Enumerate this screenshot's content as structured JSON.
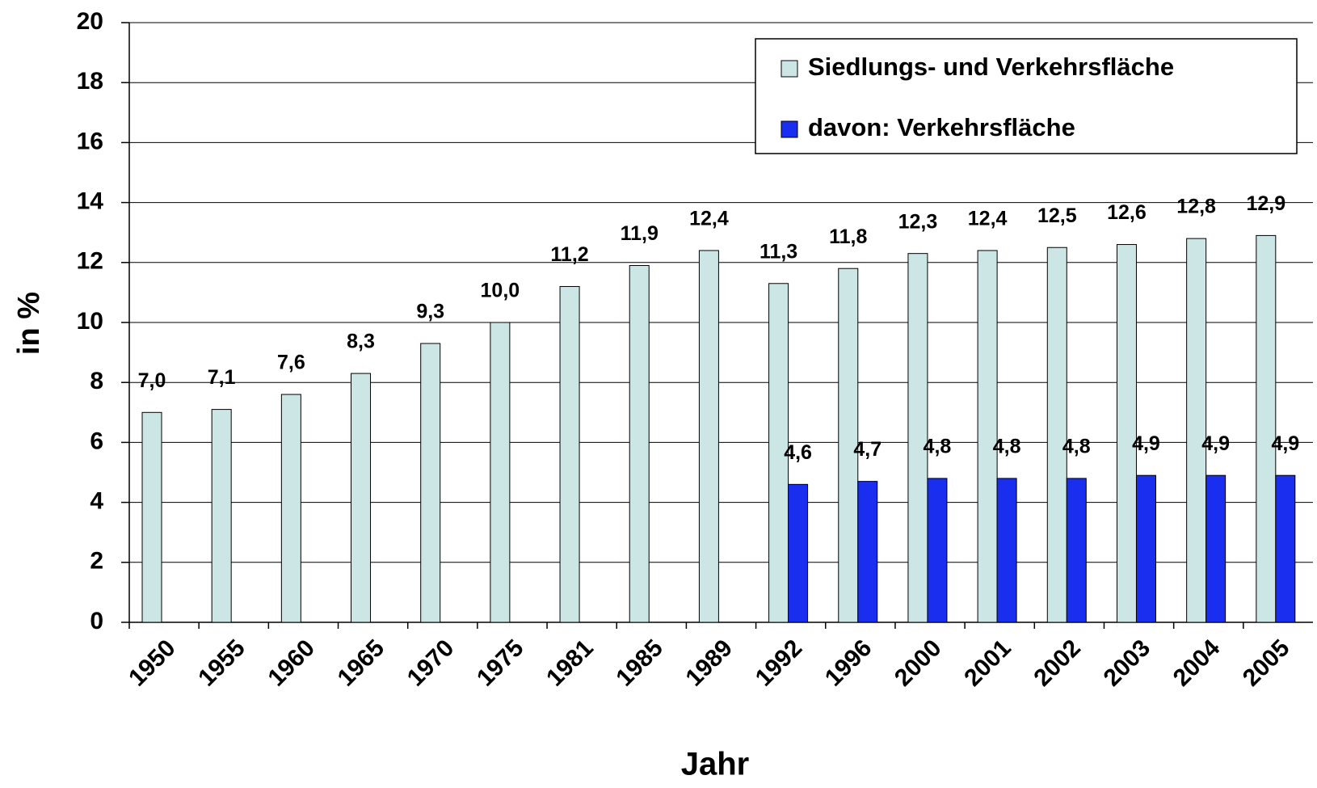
{
  "chart_data": {
    "type": "bar",
    "x_label": "Jahr",
    "y_label": "in %",
    "categories": [
      "1950",
      "1955",
      "1960",
      "1965",
      "1970",
      "1975",
      "1981",
      "1985",
      "1989",
      "1992",
      "1996",
      "2000",
      "2001",
      "2002",
      "2003",
      "2004",
      "2005"
    ],
    "series": [
      {
        "name": "Siedlungs- und Verkehrsfläche",
        "color": "#cce6e6",
        "values": [
          7.0,
          7.1,
          7.6,
          8.3,
          9.3,
          10.0,
          11.2,
          11.9,
          12.4,
          11.3,
          11.8,
          12.3,
          12.4,
          12.5,
          12.6,
          12.8,
          12.9
        ],
        "value_labels": [
          "7,0",
          "7,1",
          "7,6",
          "8,3",
          "9,3",
          "10,0",
          "11,2",
          "11,9",
          "12,4",
          "11,3",
          "11,8",
          "12,3",
          "12,4",
          "12,5",
          "12,6",
          "12,8",
          "12,9"
        ]
      },
      {
        "name": "davon: Verkehrsfläche",
        "color": "#1a2ef0",
        "values": [
          null,
          null,
          null,
          null,
          null,
          null,
          null,
          null,
          null,
          4.6,
          4.7,
          4.8,
          4.8,
          4.8,
          4.9,
          4.9,
          4.9
        ],
        "value_labels": [
          null,
          null,
          null,
          null,
          null,
          null,
          null,
          null,
          null,
          "4,6",
          "4,7",
          "4,8",
          "4,8",
          "4,8",
          "4,9",
          "4,9",
          "4,9"
        ]
      }
    ],
    "ylim": [
      0,
      20
    ],
    "yticks": [
      0,
      2,
      4,
      6,
      8,
      10,
      12,
      14,
      16,
      18,
      20
    ],
    "grid": true
  }
}
